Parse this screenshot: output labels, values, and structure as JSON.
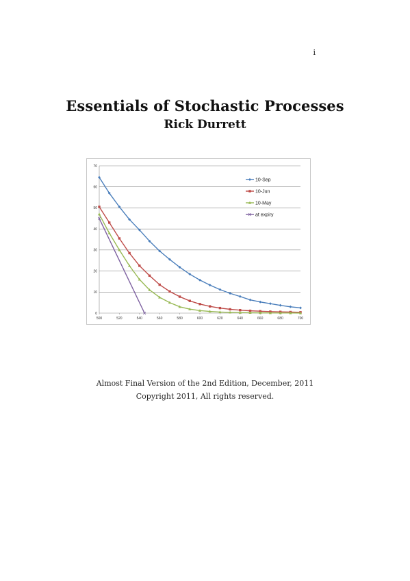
{
  "page_number": "i",
  "title": "Essentials of Stochastic Processes",
  "author": "Rick Durrett",
  "footer": {
    "version": "Almost Final Version of the 2nd Edition, December, 2011",
    "copyright": "Copyright 2011, All rights reserved."
  },
  "chart_data": {
    "type": "line",
    "title": "",
    "xlabel": "",
    "ylabel": "",
    "xlim": [
      500,
      700
    ],
    "ylim": [
      0,
      70
    ],
    "x_ticks": [
      "500",
      "520",
      "540",
      "560",
      "580",
      "600",
      "620",
      "640",
      "660",
      "680",
      "700"
    ],
    "y_ticks": [
      "0",
      "10",
      "20",
      "30",
      "40",
      "50",
      "60",
      "70"
    ],
    "grid": "horizontal",
    "legend_position": "top-right",
    "x": [
      500,
      510,
      520,
      530,
      540,
      550,
      560,
      570,
      580,
      590,
      600,
      610,
      620,
      630,
      640,
      650,
      660,
      670,
      680,
      690,
      700
    ],
    "series": [
      {
        "name": "10-Sep",
        "color": "#4a7ebb",
        "marker": "diamond",
        "x": [
          500,
          510,
          520,
          530,
          540,
          550,
          560,
          570,
          580,
          590,
          600,
          610,
          620,
          630,
          640,
          650,
          660,
          670,
          680,
          690,
          700
        ],
        "values": [
          64.5,
          57,
          50.5,
          44.5,
          39.5,
          34.2,
          29.5,
          25.5,
          21.8,
          18.5,
          15.7,
          13.3,
          11.2,
          9.4,
          7.9,
          6.3,
          5.3,
          4.5,
          3.7,
          3.0,
          2.5
        ]
      },
      {
        "name": "10-Jun",
        "color": "#be4b48",
        "marker": "square",
        "x": [
          500,
          510,
          520,
          530,
          540,
          550,
          560,
          570,
          580,
          590,
          600,
          610,
          620,
          630,
          640,
          650,
          660,
          670,
          680,
          690,
          700
        ],
        "values": [
          50.5,
          43,
          35.5,
          28.5,
          22.5,
          17.8,
          13.5,
          10.3,
          7.8,
          5.8,
          4.3,
          3.2,
          2.4,
          1.8,
          1.4,
          1.1,
          0.9,
          0.7,
          0.6,
          0.5,
          0.4
        ]
      },
      {
        "name": "10-May",
        "color": "#98b954",
        "marker": "triangle",
        "x": [
          500,
          510,
          520,
          530,
          540,
          550,
          560,
          570,
          580,
          590,
          600,
          610,
          620,
          630,
          640,
          650,
          660,
          670,
          680,
          690,
          700
        ],
        "values": [
          47,
          38,
          30,
          22.5,
          16,
          11,
          7.5,
          5,
          3,
          1.9,
          1.2,
          0.8,
          0.5,
          0.35,
          0.25,
          0.18,
          0.12,
          0.09,
          0.06,
          0.05,
          0.04
        ]
      },
      {
        "name": "at expiry",
        "color": "#7d60a0",
        "marker": "x",
        "x": [
          500,
          545
        ],
        "values": [
          45,
          0
        ]
      }
    ]
  }
}
